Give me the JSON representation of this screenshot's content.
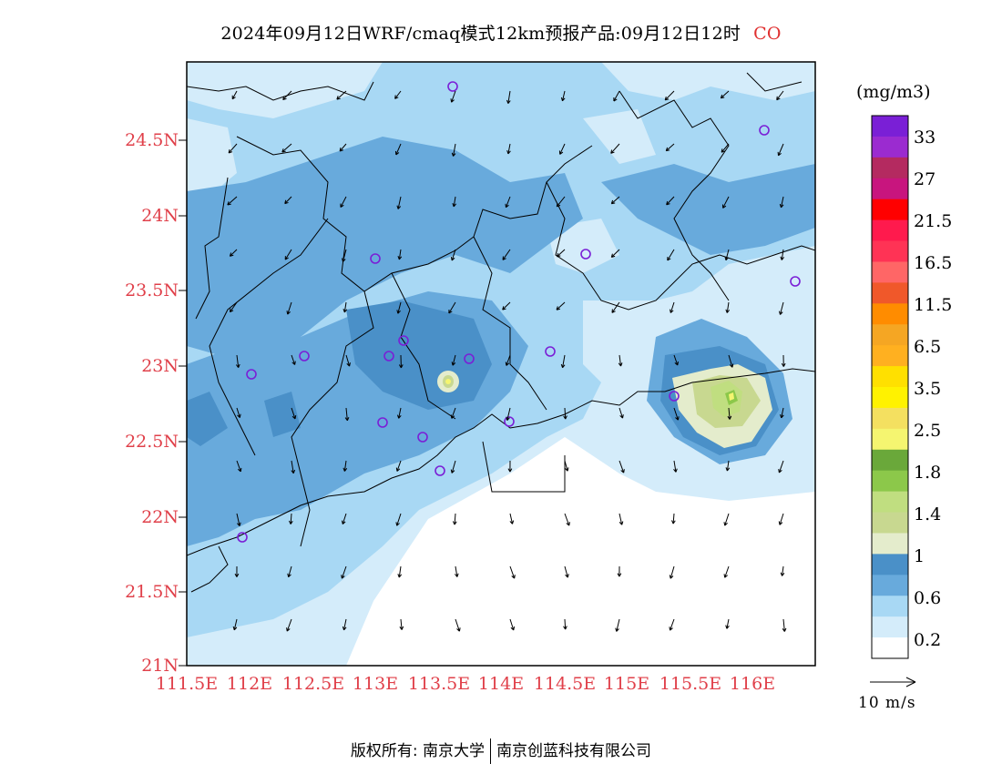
{
  "title": "2024年09月12日WRF/cmaq模式12km预报产品:09月12日12时",
  "species": "CO",
  "unit": "(mg/m3)",
  "lat_labels": [
    "24.5N",
    "24N",
    "23.5N",
    "23N",
    "22.5N",
    "22N",
    "21.5N",
    "21N"
  ],
  "lon_labels": [
    "111.5E",
    "112E",
    "112.5E",
    "113E",
    "113.5E",
    "114E",
    "114.5E",
    "115E",
    "115.5E",
    "116E"
  ],
  "colorbar": {
    "labels": [
      "33",
      "27",
      "21.5",
      "16.5",
      "11.5",
      "6.5",
      "3.5",
      "2.5",
      "1.8",
      "1.4",
      "1",
      "0.6",
      "0.2"
    ],
    "colors": [
      "#7a1fd6",
      "#9b2bd0",
      "#b42a60",
      "#c8157e",
      "#ff0000",
      "#ff1a4d",
      "#ff3355",
      "#ff6666",
      "#f0582a",
      "#ff8c00",
      "#f5a623",
      "#ffb020",
      "#ffe000",
      "#fff200",
      "#f4e060",
      "#f5f570",
      "#6aa83a",
      "#8cc84a",
      "#c0de80",
      "#c8d890",
      "#e4eccc",
      "#4a90c8",
      "#68aadc",
      "#a8d8f4",
      "#d4ecfa",
      "#ffffff"
    ]
  },
  "wind_scale_label": "10  m/s",
  "footer": {
    "left": "版权所有: 南京大学",
    "right": "南京创蓝科技有限公司"
  }
}
